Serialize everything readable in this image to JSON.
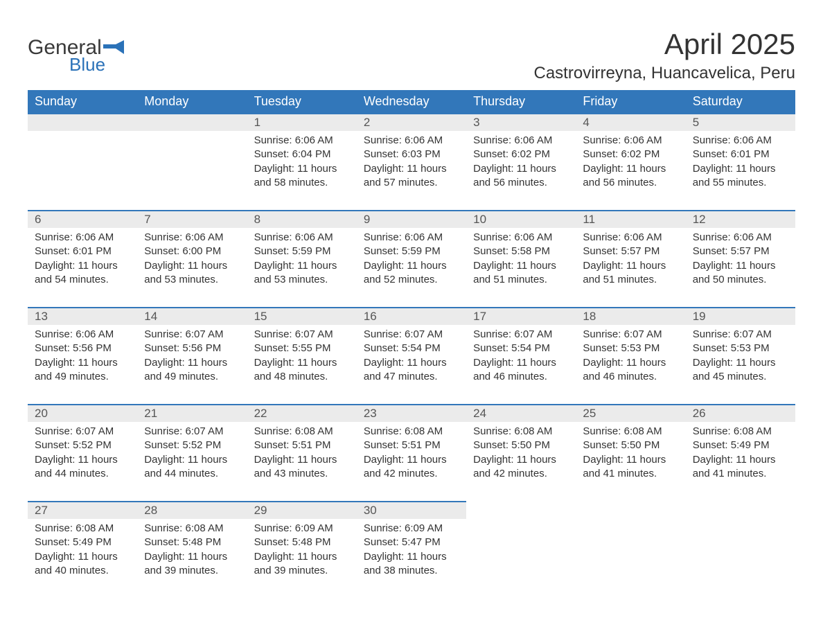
{
  "logo": {
    "word1": "General",
    "word2": "Blue"
  },
  "title": "April 2025",
  "location": "Castrovirreyna, Huancavelica, Peru",
  "colors": {
    "header_bg": "#3277ba",
    "header_text": "#ffffff",
    "daybar_bg": "#ebebeb",
    "daybar_border": "#3277ba",
    "page_bg": "#ffffff",
    "text": "#333333",
    "logo_blue": "#2b72b8"
  },
  "typography": {
    "title_fontsize": 42,
    "location_fontsize": 24,
    "dayheader_fontsize": 18,
    "daynum_fontsize": 17,
    "body_fontsize": 15
  },
  "day_headers": [
    "Sunday",
    "Monday",
    "Tuesday",
    "Wednesday",
    "Thursday",
    "Friday",
    "Saturday"
  ],
  "weeks": [
    [
      null,
      null,
      {
        "n": "1",
        "sunrise": "6:06 AM",
        "sunset": "6:04 PM",
        "daylight": "11 hours and 58 minutes."
      },
      {
        "n": "2",
        "sunrise": "6:06 AM",
        "sunset": "6:03 PM",
        "daylight": "11 hours and 57 minutes."
      },
      {
        "n": "3",
        "sunrise": "6:06 AM",
        "sunset": "6:02 PM",
        "daylight": "11 hours and 56 minutes."
      },
      {
        "n": "4",
        "sunrise": "6:06 AM",
        "sunset": "6:02 PM",
        "daylight": "11 hours and 56 minutes."
      },
      {
        "n": "5",
        "sunrise": "6:06 AM",
        "sunset": "6:01 PM",
        "daylight": "11 hours and 55 minutes."
      }
    ],
    [
      {
        "n": "6",
        "sunrise": "6:06 AM",
        "sunset": "6:01 PM",
        "daylight": "11 hours and 54 minutes."
      },
      {
        "n": "7",
        "sunrise": "6:06 AM",
        "sunset": "6:00 PM",
        "daylight": "11 hours and 53 minutes."
      },
      {
        "n": "8",
        "sunrise": "6:06 AM",
        "sunset": "5:59 PM",
        "daylight": "11 hours and 53 minutes."
      },
      {
        "n": "9",
        "sunrise": "6:06 AM",
        "sunset": "5:59 PM",
        "daylight": "11 hours and 52 minutes."
      },
      {
        "n": "10",
        "sunrise": "6:06 AM",
        "sunset": "5:58 PM",
        "daylight": "11 hours and 51 minutes."
      },
      {
        "n": "11",
        "sunrise": "6:06 AM",
        "sunset": "5:57 PM",
        "daylight": "11 hours and 51 minutes."
      },
      {
        "n": "12",
        "sunrise": "6:06 AM",
        "sunset": "5:57 PM",
        "daylight": "11 hours and 50 minutes."
      }
    ],
    [
      {
        "n": "13",
        "sunrise": "6:06 AM",
        "sunset": "5:56 PM",
        "daylight": "11 hours and 49 minutes."
      },
      {
        "n": "14",
        "sunrise": "6:07 AM",
        "sunset": "5:56 PM",
        "daylight": "11 hours and 49 minutes."
      },
      {
        "n": "15",
        "sunrise": "6:07 AM",
        "sunset": "5:55 PM",
        "daylight": "11 hours and 48 minutes."
      },
      {
        "n": "16",
        "sunrise": "6:07 AM",
        "sunset": "5:54 PM",
        "daylight": "11 hours and 47 minutes."
      },
      {
        "n": "17",
        "sunrise": "6:07 AM",
        "sunset": "5:54 PM",
        "daylight": "11 hours and 46 minutes."
      },
      {
        "n": "18",
        "sunrise": "6:07 AM",
        "sunset": "5:53 PM",
        "daylight": "11 hours and 46 minutes."
      },
      {
        "n": "19",
        "sunrise": "6:07 AM",
        "sunset": "5:53 PM",
        "daylight": "11 hours and 45 minutes."
      }
    ],
    [
      {
        "n": "20",
        "sunrise": "6:07 AM",
        "sunset": "5:52 PM",
        "daylight": "11 hours and 44 minutes."
      },
      {
        "n": "21",
        "sunrise": "6:07 AM",
        "sunset": "5:52 PM",
        "daylight": "11 hours and 44 minutes."
      },
      {
        "n": "22",
        "sunrise": "6:08 AM",
        "sunset": "5:51 PM",
        "daylight": "11 hours and 43 minutes."
      },
      {
        "n": "23",
        "sunrise": "6:08 AM",
        "sunset": "5:51 PM",
        "daylight": "11 hours and 42 minutes."
      },
      {
        "n": "24",
        "sunrise": "6:08 AM",
        "sunset": "5:50 PM",
        "daylight": "11 hours and 42 minutes."
      },
      {
        "n": "25",
        "sunrise": "6:08 AM",
        "sunset": "5:50 PM",
        "daylight": "11 hours and 41 minutes."
      },
      {
        "n": "26",
        "sunrise": "6:08 AM",
        "sunset": "5:49 PM",
        "daylight": "11 hours and 41 minutes."
      }
    ],
    [
      {
        "n": "27",
        "sunrise": "6:08 AM",
        "sunset": "5:49 PM",
        "daylight": "11 hours and 40 minutes."
      },
      {
        "n": "28",
        "sunrise": "6:08 AM",
        "sunset": "5:48 PM",
        "daylight": "11 hours and 39 minutes."
      },
      {
        "n": "29",
        "sunrise": "6:09 AM",
        "sunset": "5:48 PM",
        "daylight": "11 hours and 39 minutes."
      },
      {
        "n": "30",
        "sunrise": "6:09 AM",
        "sunset": "5:47 PM",
        "daylight": "11 hours and 38 minutes."
      },
      null,
      null,
      null
    ]
  ],
  "labels": {
    "sunrise": "Sunrise: ",
    "sunset": "Sunset: ",
    "daylight": "Daylight: "
  }
}
